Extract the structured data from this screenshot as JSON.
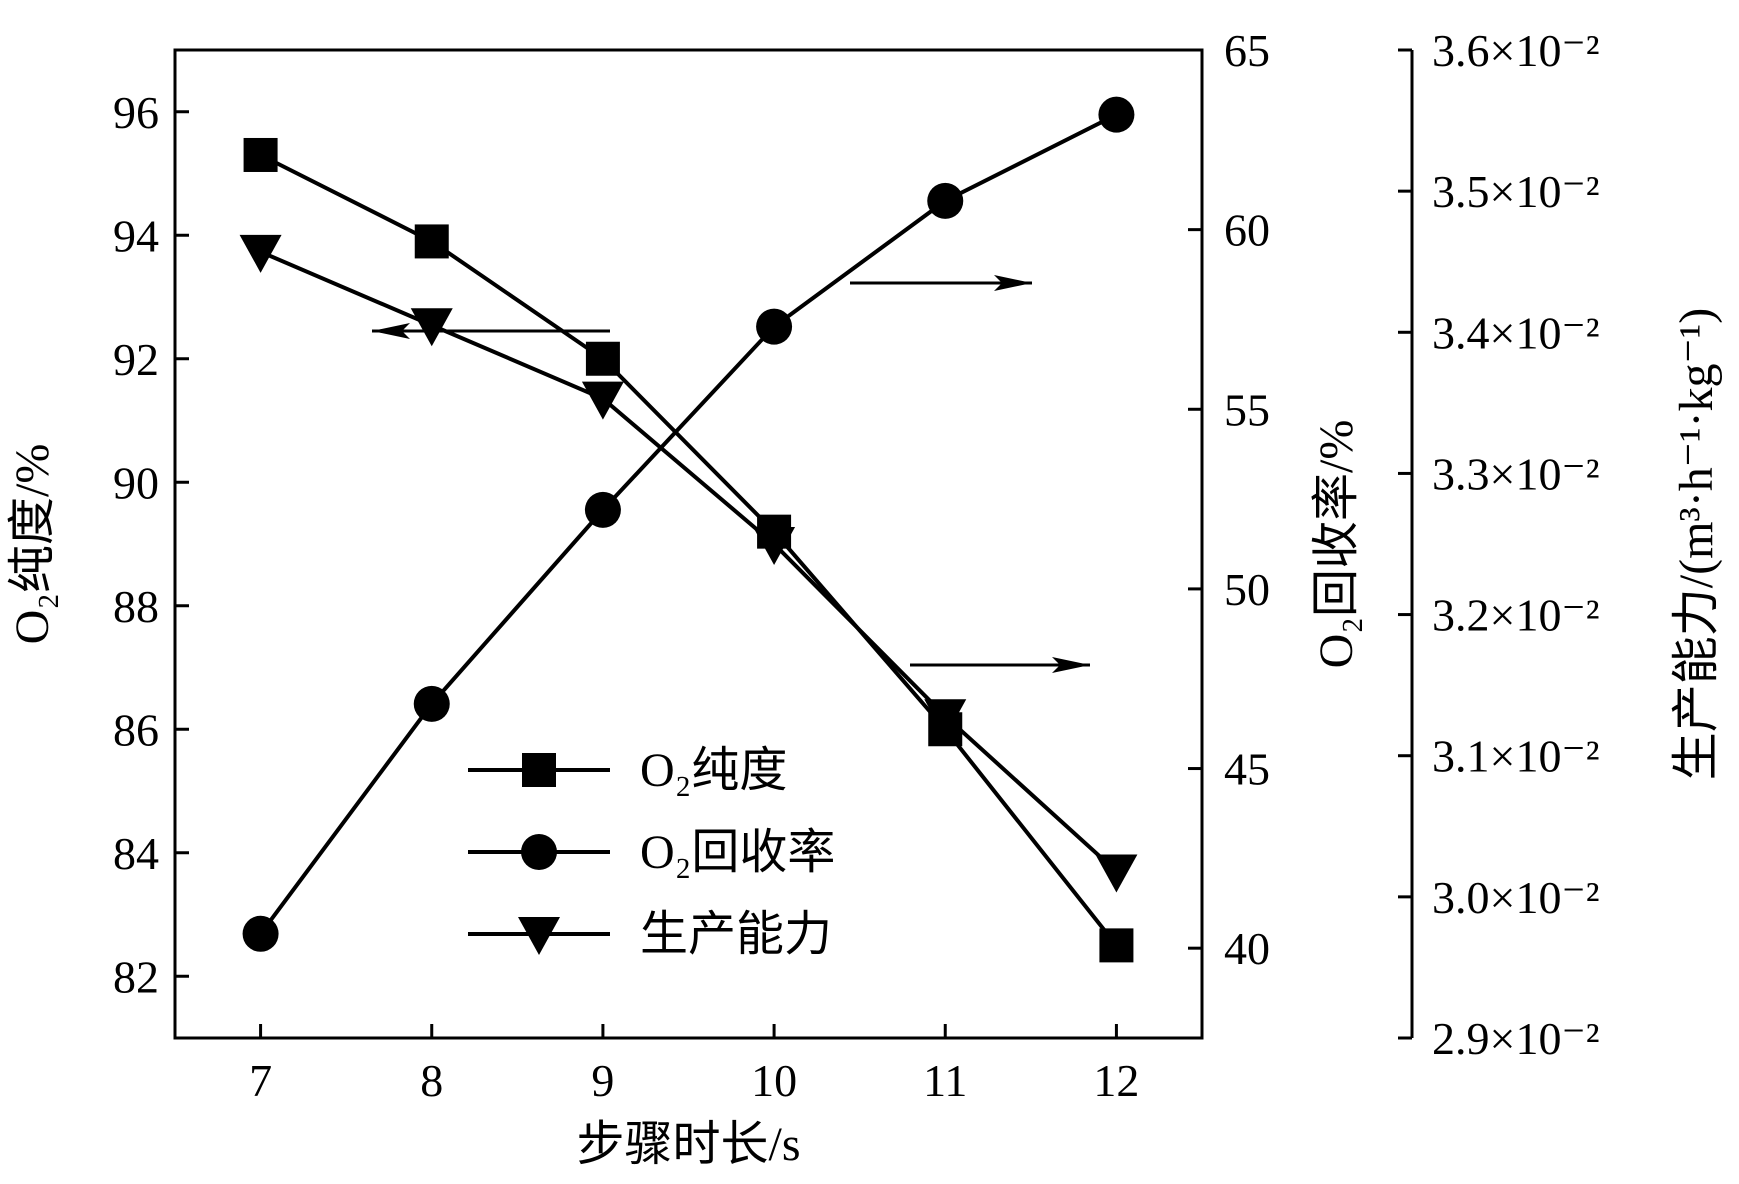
{
  "chart_data": {
    "type": "line",
    "x": [
      7,
      8,
      9,
      10,
      11,
      12
    ],
    "xlabel": "步骤时长/s",
    "xlim": [
      6.5,
      12.5
    ],
    "x_ticks": [
      "7",
      "8",
      "9",
      "10",
      "11",
      "12"
    ],
    "y_axes": [
      {
        "id": "purity",
        "label": "O₂纯度/%",
        "side": "left",
        "ylim": [
          81,
          97
        ],
        "ticks": [
          "82",
          "84",
          "86",
          "88",
          "90",
          "92",
          "94",
          "96"
        ]
      },
      {
        "id": "recovery",
        "label": "O₂回收率/%",
        "side": "right",
        "ylim": [
          37.5,
          65
        ],
        "ticks": [
          "40",
          "45",
          "50",
          "55",
          "60",
          "65"
        ]
      },
      {
        "id": "productivity",
        "label": "生产能力/(m³·h⁻¹·kg⁻¹)",
        "side": "right-outer",
        "ylim": [
          0.029,
          0.036
        ],
        "ticks": [
          "2.9×10⁻²",
          "3.0×10⁻²",
          "3.1×10⁻²",
          "3.2×10⁻²",
          "3.3×10⁻²",
          "3.4×10⁻²",
          "3.5×10⁻²",
          "3.6×10⁻²"
        ]
      }
    ],
    "series": [
      {
        "name": "O₂纯度",
        "axis": "purity",
        "marker": "square",
        "values": [
          95.3,
          93.9,
          92.0,
          89.2,
          86.0,
          82.5
        ]
      },
      {
        "name": "O₂回收率",
        "axis": "recovery",
        "marker": "circle",
        "values": [
          40.4,
          46.8,
          52.2,
          57.3,
          60.8,
          63.2
        ]
      },
      {
        "name": "生产能力",
        "axis": "productivity",
        "marker": "triangle-down",
        "values": [
          0.03457,
          0.03405,
          0.03353,
          0.0325,
          0.03128,
          0.03018
        ]
      }
    ],
    "legend": {
      "position": "lower-center",
      "entries": [
        "O₂纯度",
        "O₂回收率",
        "生产能力"
      ]
    },
    "grid": false
  }
}
